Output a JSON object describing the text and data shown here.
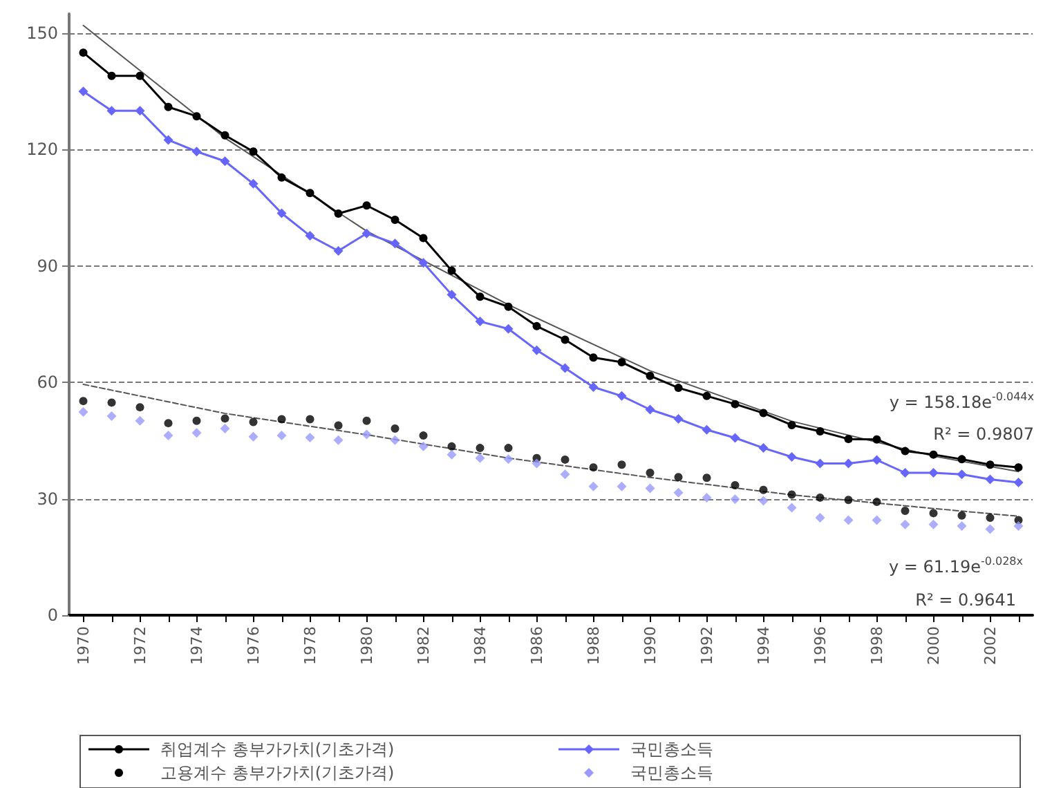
{
  "chart_data": {
    "type": "line",
    "categories": [
      "1970",
      null,
      "1972",
      null,
      "1974",
      null,
      "1976",
      null,
      "1978",
      null,
      "1980",
      null,
      "1982",
      null,
      "1984",
      null,
      "1986",
      null,
      "1988",
      null,
      "1990",
      null,
      "1992",
      null,
      "1994",
      null,
      "1996",
      null,
      "1998",
      null,
      "2000",
      null,
      "2002",
      null
    ],
    "series": [
      {
        "name": "취업계수 총부가가치(기초가격)",
        "color": "#000000",
        "marker": "circle",
        "line_style": "solid",
        "values": [
          145,
          139,
          139,
          131,
          128.6,
          123.7,
          119.5,
          112.8,
          108.8,
          103.5,
          105.6,
          101.9,
          97.2,
          88.8,
          82.1,
          79.5,
          74.5,
          71,
          66.4,
          65.2,
          61.7,
          58.6,
          56.5,
          54.4,
          52.1,
          49,
          47.4,
          45.4,
          45.3,
          42.3,
          41.4,
          40.2,
          38.8,
          38.1
        ]
      },
      {
        "name": "국민총소득",
        "color": "#6666ff",
        "marker": "diamond",
        "line_style": "solid",
        "values": [
          135,
          130,
          130,
          122.5,
          119.5,
          117,
          111.2,
          103.6,
          97.8,
          93.9,
          98.4,
          95.8,
          90.8,
          82.6,
          75.7,
          73.8,
          68.3,
          63.7,
          58.8,
          56.5,
          53,
          50.6,
          47.8,
          45.7,
          43.1,
          40.8,
          39.1,
          39.1,
          40,
          36.7,
          36.7,
          36.3,
          35,
          34.2
        ]
      },
      {
        "name": "고용계수 총부가가치(기초가격)",
        "type": "scatter",
        "color": "#000000",
        "marker": "circle",
        "values": [
          55.2,
          54.8,
          53.6,
          49.5,
          50.1,
          50.7,
          49.8,
          50.5,
          50.5,
          48.9,
          50.1,
          48.1,
          46.3,
          43.5,
          43.1,
          43.1,
          40.5,
          40.1,
          38.1,
          38.8,
          36.7,
          35.6,
          35.4,
          33.5,
          32.3,
          31.1,
          30.3,
          29.7,
          29.2,
          26.9,
          26.3,
          25.7,
          25.1,
          24.5
        ]
      },
      {
        "name": "국민총소득",
        "type": "scatter",
        "color": "#9999ff",
        "marker": "diamond",
        "values": [
          52.4,
          51.3,
          50.1,
          46.3,
          47,
          48.1,
          46,
          46.3,
          45.8,
          45.1,
          46.6,
          45.1,
          43.5,
          41.4,
          40.5,
          40.2,
          39.1,
          36.3,
          33.2,
          33.2,
          32.7,
          31.6,
          30.3,
          29.9,
          29.5,
          27.7,
          25.1,
          24.5,
          24.5,
          23.4,
          23.4,
          23,
          22.2,
          23
        ]
      },
      {
        "color": "#555555",
        "marker": "none",
        "line_style": "solid",
        "values": [
          152,
          null,
          null,
          null,
          null,
          123,
          null,
          null,
          null,
          null,
          99,
          null,
          null,
          null,
          null,
          80,
          null,
          null,
          null,
          null,
          63,
          null,
          null,
          null,
          null,
          50,
          null,
          null,
          null,
          null,
          41,
          null,
          null,
          37
        ]
      },
      {
        "color": "#555555",
        "marker": "none",
        "line_style": "dashed",
        "values": [
          59.5,
          null,
          null,
          null,
          null,
          52,
          null,
          null,
          null,
          null,
          46.5,
          null,
          null,
          null,
          null,
          40.5,
          null,
          null,
          null,
          null,
          35.5,
          null,
          null,
          null,
          null,
          31,
          null,
          null,
          null,
          null,
          27.5,
          null,
          null,
          25.5
        ]
      }
    ],
    "ylim": [
      0,
      155
    ],
    "yticks": [
      0,
      30,
      60,
      90,
      120,
      150
    ],
    "grid": "y",
    "legend": "bottom",
    "annotations": [
      "y = 158.18e$^{-0.044x}$",
      "R² = 0.9807",
      "y = 61.19e$^{-0.028x}$",
      "R² = 0.9641"
    ]
  }
}
